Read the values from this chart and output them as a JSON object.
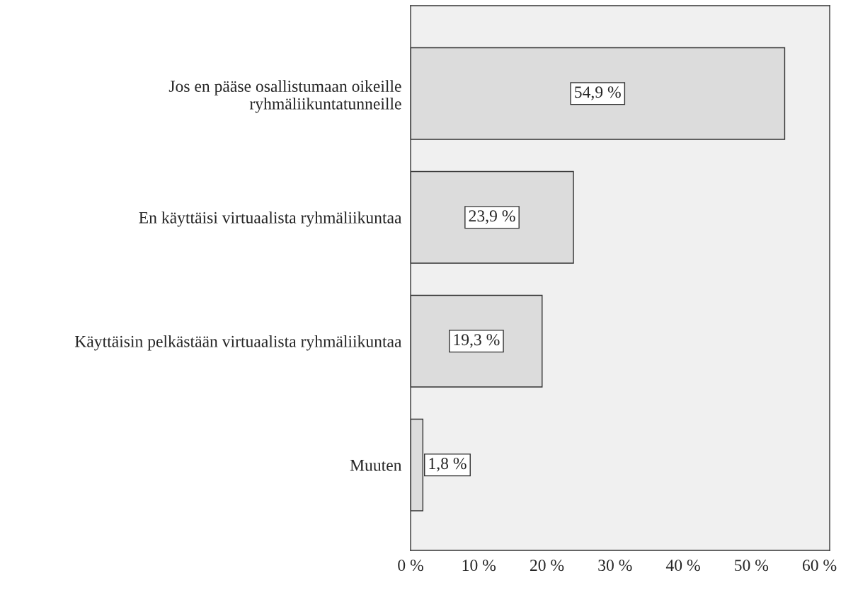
{
  "chart_data": {
    "type": "bar",
    "orientation": "horizontal",
    "categories": [
      "Jos en pääse osallistumaan oikeille\nryhmäliikuntatunneille",
      "En käyttäisi virtuaalista ryhmäliikuntaa",
      "Käyttäisin pelkästään virtuaalista ryhmäliikuntaa",
      "Muuten"
    ],
    "values": [
      54.9,
      23.9,
      19.3,
      1.8
    ],
    "value_labels": [
      "54,9 %",
      "23,9 %",
      "19,3 %",
      "1,8 %"
    ],
    "color": "#dcdcdc",
    "xlim": [
      0,
      61.5
    ],
    "xticks": [
      {
        "value": 0,
        "label": "0 %"
      },
      {
        "value": 10,
        "label": "10 %"
      },
      {
        "value": 20,
        "label": "20 %"
      },
      {
        "value": 30,
        "label": "30 %"
      },
      {
        "value": 40,
        "label": "40 %"
      },
      {
        "value": 50,
        "label": "50 %"
      },
      {
        "value": 60,
        "label": "60 %"
      }
    ],
    "grid": false,
    "legend": false
  }
}
